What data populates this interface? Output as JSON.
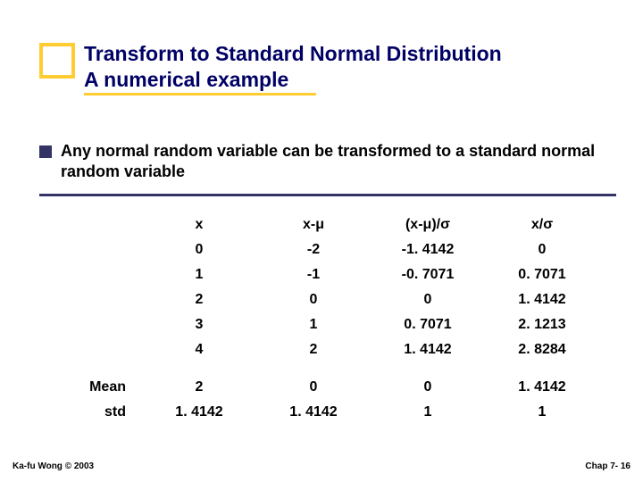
{
  "title": {
    "line1": "Transform to Standard Normal Distribution",
    "line2": "A numerical example"
  },
  "bullet": "Any normal random variable can be transformed to a standard normal random variable",
  "table": {
    "headers": [
      "x",
      "x-μ",
      "(x-μ)/σ",
      "x/σ"
    ],
    "rows": [
      [
        "0",
        "-2",
        "-1. 4142",
        "0"
      ],
      [
        "1",
        "-1",
        "-0. 7071",
        "0. 7071"
      ],
      [
        "2",
        "0",
        "0",
        "1. 4142"
      ],
      [
        "3",
        "1",
        "0. 7071",
        "2. 1213"
      ],
      [
        "4",
        "2",
        "1. 4142",
        "2. 8284"
      ]
    ],
    "summary": [
      {
        "label": "Mean",
        "values": [
          "2",
          "0",
          "0",
          "1. 4142"
        ]
      },
      {
        "label": "std",
        "values": [
          "1. 4142",
          "1. 4142",
          "1",
          "1"
        ]
      }
    ]
  },
  "footer": {
    "left": "Ka-fu Wong © 2003",
    "right": "Chap 7- 16"
  },
  "colors": {
    "accent": "#ffcc33",
    "title_text": "#000066",
    "divider": "#333366"
  }
}
